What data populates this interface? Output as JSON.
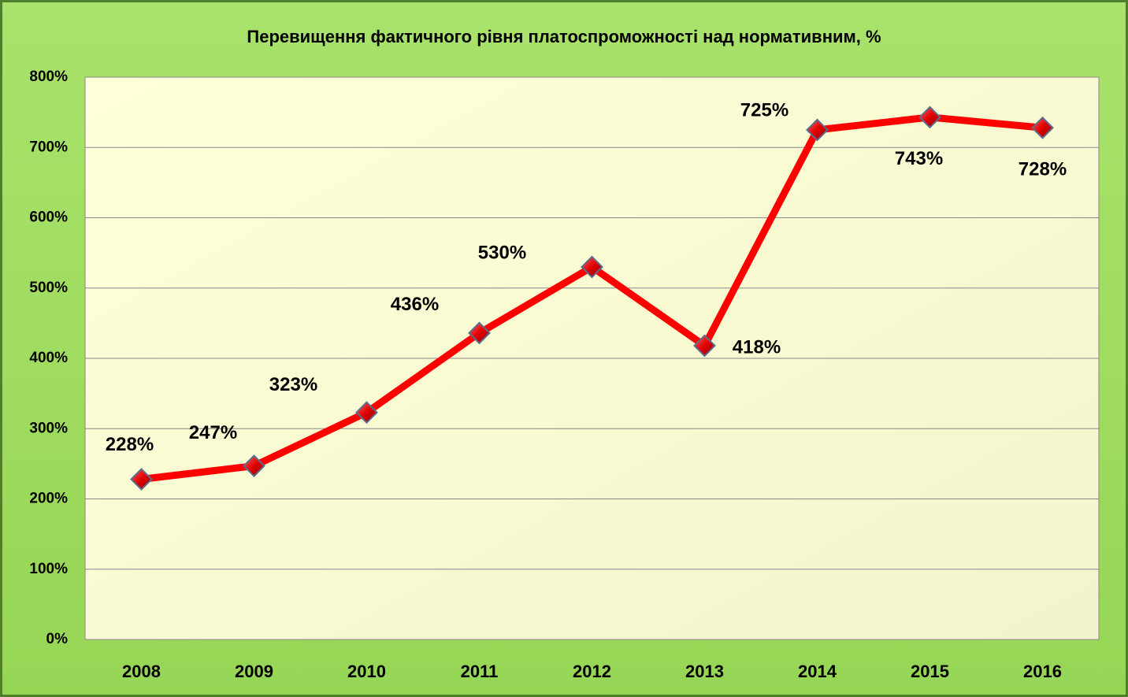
{
  "chart_data": {
    "type": "line",
    "title": "Перевищення фактичного рівня платоспроможності над нормативним, %",
    "categories": [
      "2008",
      "2009",
      "2010",
      "2011",
      "2012",
      "2013",
      "2014",
      "2015",
      "2016"
    ],
    "series": [
      {
        "color": "#ff0000",
        "values": [
          228,
          247,
          323,
          436,
          530,
          418,
          725,
          743,
          728
        ],
        "value_labels": [
          "228%",
          "247%",
          "323%",
          "436%",
          "530%",
          "418%",
          "725%",
          "743%",
          "728%"
        ]
      }
    ],
    "ylim": [
      0,
      800
    ],
    "yticks": [
      {
        "value": 0,
        "label": "0%"
      },
      {
        "value": 100,
        "label": "100%"
      },
      {
        "value": 200,
        "label": "200%"
      },
      {
        "value": 300,
        "label": "300%"
      },
      {
        "value": 400,
        "label": "400%"
      },
      {
        "value": 500,
        "label": "500%"
      },
      {
        "value": 600,
        "label": "600%"
      },
      {
        "value": 700,
        "label": "700%"
      },
      {
        "value": 800,
        "label": "800%"
      }
    ],
    "grid": true
  }
}
